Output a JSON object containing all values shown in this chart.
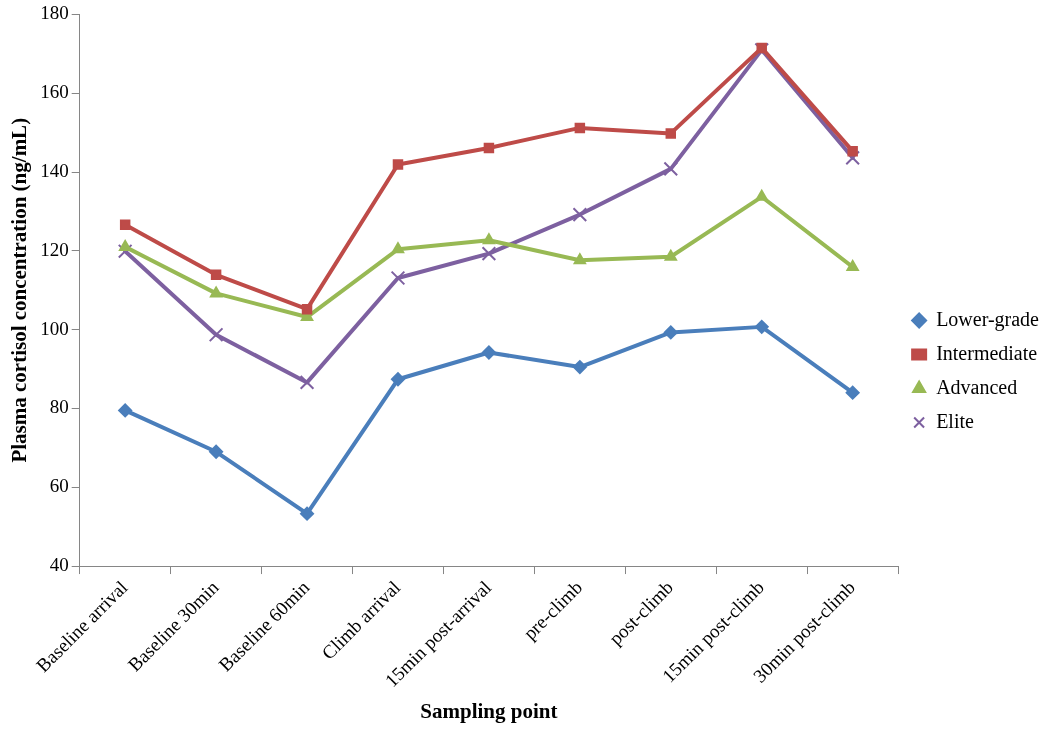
{
  "chart_data": {
    "type": "line",
    "xlabel": "Sampling point",
    "ylabel": "Plasma cortisol concentration (ng/mL)",
    "categories": [
      "Baseline arrival",
      "Baseline 30min",
      "Baseline 60min",
      "Climb arrival",
      "15min post-arrival",
      "pre-climb",
      "post-climb",
      "15min post-climb",
      "30min post-climb"
    ],
    "ylim": [
      40,
      180
    ],
    "yticks": [
      40,
      60,
      80,
      100,
      120,
      140,
      160,
      180
    ],
    "grid": false,
    "legend": "right",
    "line_style": "solid",
    "series": [
      {
        "name": "Lower-grade",
        "color": "#4a7ebb",
        "marker": "diamond",
        "values": [
          79.5,
          69,
          53.3,
          87.4,
          94.2,
          90.5,
          99.3,
          100.7,
          84
        ]
      },
      {
        "name": "Intermediate",
        "color": "#be4b48",
        "marker": "square",
        "values": [
          126.6,
          113.9,
          105.2,
          141.9,
          146.1,
          151.2,
          149.8,
          171.5,
          145.3
        ]
      },
      {
        "name": "Advanced",
        "color": "#98b954",
        "marker": "triangle",
        "values": [
          121,
          109.2,
          103.2,
          120.4,
          122.7,
          117.6,
          118.5,
          133.7,
          115.9
        ]
      },
      {
        "name": "Elite",
        "color": "#7d60a0",
        "marker": "cross",
        "values": [
          119.9,
          98.7,
          86.6,
          113.1,
          119.3,
          129.2,
          140.8,
          171,
          143.6
        ]
      }
    ]
  }
}
